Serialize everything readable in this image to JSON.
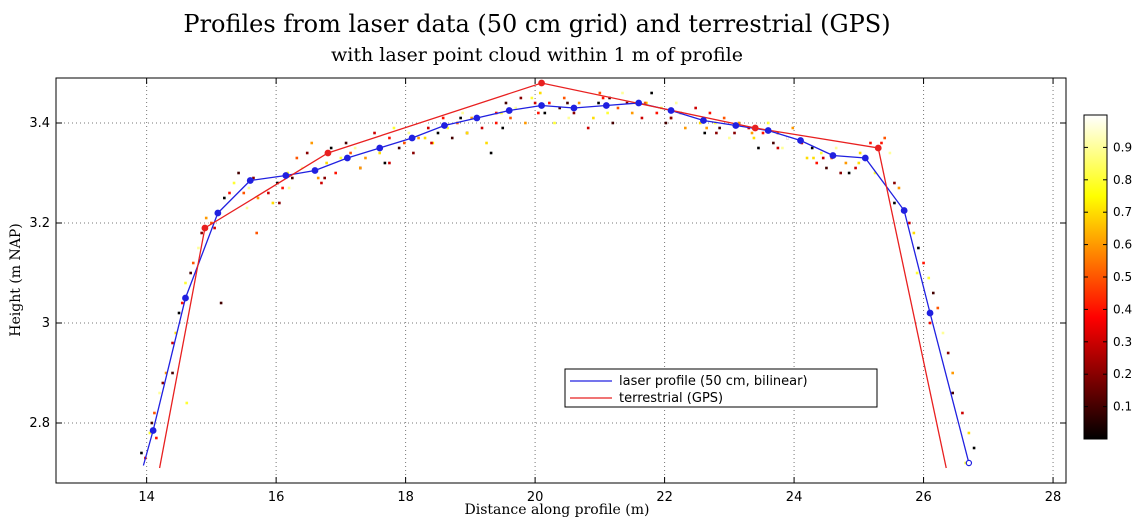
{
  "chart_data": {
    "type": "line",
    "title": "Profiles from laser data (50 cm grid) and terrestrial (GPS)",
    "subtitle": "with laser point cloud within 1 m of profile",
    "xlabel": "Distance along profile (m)",
    "ylabel": "Height (m NAP)",
    "xlim": [
      12.6,
      28.2
    ],
    "ylim": [
      2.68,
      3.49
    ],
    "x_ticks": [
      14,
      16,
      18,
      20,
      22,
      24,
      26,
      28
    ],
    "y_ticks": [
      2.8,
      3.0,
      3.2,
      3.4
    ],
    "y_tick_labels": [
      "2.8",
      "3",
      "3.2",
      "3.4"
    ],
    "grid": true,
    "legend_position": "lower-center",
    "series": [
      {
        "name": "laser profile (50 cm, bilinear)",
        "color": "#2020e0",
        "x": [
          13.95,
          14.1,
          14.6,
          15.1,
          15.6,
          16.15,
          16.6,
          17.1,
          17.6,
          18.1,
          18.6,
          19.1,
          19.6,
          20.1,
          20.6,
          21.1,
          21.6,
          22.1,
          22.6,
          23.1,
          23.6,
          24.1,
          24.6,
          25.1,
          25.7,
          26.1,
          26.7
        ],
        "y": [
          2.715,
          2.785,
          3.05,
          3.22,
          3.285,
          3.295,
          3.305,
          3.33,
          3.35,
          3.37,
          3.395,
          3.41,
          3.425,
          3.435,
          3.43,
          3.435,
          3.44,
          3.425,
          3.405,
          3.395,
          3.385,
          3.365,
          3.335,
          3.33,
          3.225,
          3.02,
          2.72
        ]
      },
      {
        "name": "terrestrial (GPS)",
        "color": "#e82020",
        "x": [
          14.2,
          14.9,
          16.8,
          20.1,
          23.4,
          25.3,
          26.35
        ],
        "y": [
          2.71,
          3.19,
          3.34,
          3.48,
          3.39,
          3.35,
          2.71
        ]
      }
    ],
    "point_cloud": {
      "x": [
        13.92,
        13.98,
        14.05,
        14.08,
        14.12,
        14.2,
        14.25,
        14.3,
        14.35,
        14.4,
        14.45,
        14.5,
        14.55,
        14.6,
        14.68,
        14.72,
        14.8,
        14.85,
        14.92,
        14.98,
        15.05,
        15.12,
        15.2,
        15.28,
        15.35,
        15.42,
        15.5,
        15.58,
        15.65,
        15.72,
        15.8,
        15.88,
        15.95,
        16.02,
        16.1,
        16.18,
        16.25,
        16.32,
        16.4,
        16.48,
        16.55,
        16.62,
        16.7,
        16.78,
        16.85,
        16.92,
        17.0,
        17.08,
        17.15,
        17.22,
        17.3,
        17.38,
        17.45,
        17.52,
        17.6,
        17.68,
        17.75,
        17.82,
        17.9,
        17.98,
        18.05,
        18.12,
        18.2,
        18.28,
        18.35,
        18.42,
        18.5,
        18.58,
        18.65,
        18.72,
        18.8,
        18.88,
        18.95,
        19.02,
        19.1,
        19.18,
        19.25,
        19.32,
        19.4,
        19.48,
        19.55,
        19.62,
        19.7,
        19.78,
        19.85,
        19.92,
        20.0,
        20.08,
        20.15,
        20.22,
        20.3,
        20.38,
        20.45,
        20.52,
        20.6,
        20.68,
        20.75,
        20.82,
        20.9,
        20.98,
        21.05,
        21.12,
        21.2,
        21.28,
        21.35,
        21.42,
        21.5,
        21.58,
        21.65,
        21.72,
        21.8,
        21.88,
        21.95,
        22.02,
        22.1,
        22.18,
        22.25,
        22.32,
        22.4,
        22.48,
        22.55,
        22.62,
        22.7,
        22.78,
        22.85,
        22.92,
        23.0,
        23.08,
        23.15,
        23.22,
        23.3,
        23.38,
        23.45,
        23.52,
        23.6,
        23.68,
        23.75,
        23.82,
        23.9,
        23.98,
        24.05,
        24.12,
        24.2,
        24.28,
        24.35,
        24.42,
        24.5,
        24.58,
        24.65,
        24.72,
        24.8,
        24.88,
        24.95,
        25.02,
        25.1,
        25.18,
        25.25,
        25.32,
        25.4,
        25.48,
        25.55,
        25.62,
        25.7,
        25.78,
        25.85,
        25.92,
        26.0,
        26.08,
        26.15,
        26.22,
        26.3,
        26.38,
        26.45,
        26.52,
        26.6,
        26.7,
        26.78,
        14.15,
        14.62,
        15.15,
        15.7,
        16.2,
        16.75,
        17.3,
        17.85,
        18.4,
        18.95,
        19.5,
        20.05,
        20.6,
        21.15,
        21.7,
        22.25,
        22.8,
        23.35,
        23.9,
        24.45,
        25.0,
        25.55,
        26.1,
        26.65,
        14.4,
        15.0,
        15.55,
        16.05,
        16.65,
        17.2,
        17.75,
        18.3,
        18.85,
        19.4,
        19.95,
        20.5,
        21.0,
        21.55,
        22.1,
        22.65,
        23.2,
        23.75,
        24.3,
        24.85,
        25.35,
        25.9,
        26.45
      ],
      "y": [
        2.74,
        2.73,
        2.78,
        2.8,
        2.82,
        2.86,
        2.88,
        2.9,
        2.92,
        2.96,
        2.98,
        3.02,
        3.04,
        3.08,
        3.1,
        3.12,
        3.15,
        3.18,
        3.21,
        3.2,
        3.19,
        3.22,
        3.25,
        3.26,
        3.28,
        3.3,
        3.26,
        3.27,
        3.29,
        3.25,
        3.23,
        3.26,
        3.24,
        3.28,
        3.27,
        3.3,
        3.29,
        3.33,
        3.31,
        3.34,
        3.36,
        3.3,
        3.28,
        3.32,
        3.35,
        3.3,
        3.33,
        3.36,
        3.34,
        3.35,
        3.31,
        3.33,
        3.36,
        3.38,
        3.34,
        3.32,
        3.37,
        3.39,
        3.35,
        3.36,
        3.38,
        3.34,
        3.37,
        3.4,
        3.39,
        3.36,
        3.38,
        3.41,
        3.39,
        3.37,
        3.4,
        3.42,
        3.38,
        3.41,
        3.43,
        3.39,
        3.36,
        3.34,
        3.4,
        3.42,
        3.44,
        3.41,
        3.43,
        3.45,
        3.4,
        3.42,
        3.44,
        3.46,
        3.42,
        3.44,
        3.4,
        3.43,
        3.45,
        3.41,
        3.42,
        3.44,
        3.43,
        3.39,
        3.41,
        3.44,
        3.45,
        3.42,
        3.4,
        3.43,
        3.46,
        3.44,
        3.42,
        3.43,
        3.41,
        3.44,
        3.46,
        3.42,
        3.43,
        3.4,
        3.41,
        3.44,
        3.42,
        3.39,
        3.41,
        3.43,
        3.4,
        3.38,
        3.42,
        3.4,
        3.39,
        3.41,
        3.37,
        3.38,
        3.4,
        3.36,
        3.39,
        3.37,
        3.35,
        3.38,
        3.4,
        3.36,
        3.38,
        3.35,
        3.37,
        3.39,
        3.34,
        3.36,
        3.33,
        3.35,
        3.32,
        3.34,
        3.31,
        3.33,
        3.35,
        3.3,
        3.32,
        3.29,
        3.31,
        3.34,
        3.33,
        3.36,
        3.3,
        3.35,
        3.37,
        3.34,
        3.28,
        3.27,
        3.25,
        3.2,
        3.18,
        3.15,
        3.12,
        3.09,
        3.06,
        3.03,
        2.98,
        2.94,
        2.9,
        2.86,
        2.82,
        2.78,
        2.75,
        2.77,
        2.84,
        3.04,
        3.18,
        3.27,
        3.29,
        3.31,
        3.32,
        3.36,
        3.38,
        3.39,
        3.42,
        3.43,
        3.45,
        3.44,
        3.42,
        3.38,
        3.38,
        3.37,
        3.33,
        3.32,
        3.24,
        3.0,
        2.72,
        2.9,
        3.2,
        3.23,
        3.24,
        3.29,
        3.28,
        3.32,
        3.37,
        3.41,
        3.42,
        3.45,
        3.44,
        3.46,
        3.44,
        3.41,
        3.39,
        3.38,
        3.35,
        3.33,
        3.3,
        3.36,
        3.1,
        2.86
      ],
      "color_scale": [
        0,
        0.1,
        0.2,
        0.3,
        0.4,
        0.5,
        0.6,
        0.7,
        0.8,
        0.9,
        1.0
      ]
    },
    "colorbar": {
      "range": [
        0,
        1
      ],
      "ticks": [
        0.1,
        0.2,
        0.3,
        0.4,
        0.5,
        0.6,
        0.7,
        0.8,
        0.9
      ],
      "colormap": "hot"
    }
  }
}
